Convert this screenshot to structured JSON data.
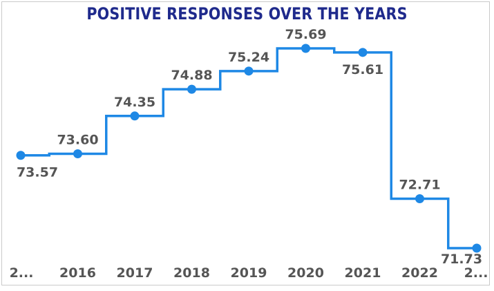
{
  "chart_data": {
    "type": "line",
    "line_shape": "step",
    "title": "POSITIVE RESPONSES OVER THE YEARS",
    "xlabel": "",
    "ylabel": "",
    "x": [
      "2...",
      "2016",
      "2017",
      "2018",
      "2019",
      "2020",
      "2021",
      "2022",
      "2..."
    ],
    "values": [
      73.57,
      73.6,
      74.35,
      74.88,
      75.24,
      75.69,
      75.61,
      72.71,
      71.73
    ],
    "value_labels": [
      "73.57",
      "73.60",
      "74.35",
      "74.88",
      "75.24",
      "75.69",
      "75.61",
      "72.71",
      "71.73"
    ],
    "ylim": [
      71.73,
      75.69
    ],
    "grid": false,
    "legend": "none",
    "colors": {
      "line": "#1e88e5",
      "title": "#1f2a8c",
      "text": "#555555"
    }
  }
}
